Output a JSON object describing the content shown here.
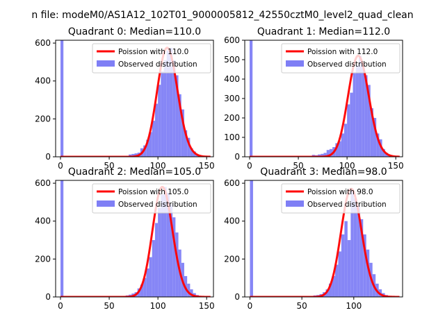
{
  "figure": {
    "suptitle": "n file: modeM0/AS1A12_102T01_9000005812_42550cztM0_level2_quad_clean"
  },
  "chart_data": [
    {
      "type": "bar",
      "title": "Quadrant 0: Median=110.0",
      "xlim": [
        -5,
        157
      ],
      "ylim": [
        0,
        615
      ],
      "xticks": [
        0,
        50,
        100,
        150
      ],
      "yticks": [
        0,
        200,
        400,
        600
      ],
      "median": 110.0,
      "legend": {
        "placement": "top-right",
        "line_label": "Poission with 110.0",
        "bar_label": "Observed distribution"
      },
      "bar_width": 3.0,
      "bars": [
        [
          0,
          1000
        ],
        [
          67,
          5
        ],
        [
          70,
          12
        ],
        [
          73,
          15
        ],
        [
          76,
          18
        ],
        [
          79,
          22
        ],
        [
          82,
          45
        ],
        [
          85,
          60
        ],
        [
          88,
          90
        ],
        [
          91,
          130
        ],
        [
          94,
          190
        ],
        [
          97,
          280
        ],
        [
          100,
          380
        ],
        [
          103,
          450
        ],
        [
          106,
          510
        ],
        [
          109,
          560
        ],
        [
          112,
          575
        ],
        [
          115,
          510
        ],
        [
          118,
          430
        ],
        [
          121,
          330
        ],
        [
          124,
          250
        ],
        [
          127,
          140
        ],
        [
          130,
          100
        ],
        [
          133,
          45
        ],
        [
          136,
          28
        ],
        [
          139,
          12
        ],
        [
          142,
          5
        ]
      ]
    },
    {
      "type": "bar",
      "title": "Quadrant 1: Median=112.0",
      "xlim": [
        -5,
        157
      ],
      "ylim": [
        0,
        600
      ],
      "xticks": [
        0,
        50,
        100,
        150
      ],
      "yticks": [
        0,
        100,
        200,
        300,
        400,
        500,
        600
      ],
      "median": 112.0,
      "legend": {
        "placement": "top-right",
        "line_label": "Poission with 112.0",
        "bar_label": "Observed distribution"
      },
      "bar_width": 3.0,
      "bars": [
        [
          0,
          1000
        ],
        [
          64,
          10
        ],
        [
          67,
          8
        ],
        [
          70,
          12
        ],
        [
          73,
          15
        ],
        [
          76,
          20
        ],
        [
          79,
          35
        ],
        [
          82,
          40
        ],
        [
          85,
          50
        ],
        [
          88,
          70
        ],
        [
          91,
          80
        ],
        [
          94,
          120
        ],
        [
          97,
          170
        ],
        [
          100,
          270
        ],
        [
          103,
          330
        ],
        [
          106,
          430
        ],
        [
          109,
          470
        ],
        [
          112,
          520
        ],
        [
          115,
          470
        ],
        [
          118,
          420
        ],
        [
          121,
          370
        ],
        [
          124,
          250
        ],
        [
          127,
          200
        ],
        [
          130,
          120
        ],
        [
          133,
          90
        ],
        [
          136,
          40
        ],
        [
          139,
          20
        ],
        [
          142,
          10
        ]
      ]
    },
    {
      "type": "bar",
      "title": "Quadrant 2: Median=105.0",
      "xlim": [
        -5,
        157
      ],
      "ylim": [
        0,
        615
      ],
      "xticks": [
        0,
        50,
        100,
        150
      ],
      "yticks": [
        0,
        200,
        400,
        600
      ],
      "median": 105.0,
      "legend": {
        "placement": "top-right",
        "line_label": "Poission with 105.0",
        "bar_label": "Observed distribution"
      },
      "bar_width": 3.0,
      "bars": [
        [
          0,
          1000
        ],
        [
          64,
          5
        ],
        [
          67,
          8
        ],
        [
          70,
          12
        ],
        [
          73,
          18
        ],
        [
          76,
          25
        ],
        [
          79,
          45
        ],
        [
          82,
          65
        ],
        [
          85,
          100
        ],
        [
          88,
          150
        ],
        [
          91,
          210
        ],
        [
          94,
          300
        ],
        [
          97,
          390
        ],
        [
          100,
          470
        ],
        [
          103,
          540
        ],
        [
          106,
          580
        ],
        [
          109,
          550
        ],
        [
          112,
          490
        ],
        [
          115,
          420
        ],
        [
          118,
          340
        ],
        [
          121,
          250
        ],
        [
          124,
          180
        ],
        [
          127,
          110
        ],
        [
          130,
          70
        ],
        [
          133,
          40
        ],
        [
          136,
          20
        ],
        [
          139,
          10
        ],
        [
          142,
          5
        ]
      ]
    },
    {
      "type": "bar",
      "title": "Quadrant 3: Median=98.0",
      "xlim": [
        -5,
        147
      ],
      "ylim": [
        0,
        615
      ],
      "xticks": [
        0,
        50,
        100
      ],
      "yticks": [
        0,
        200,
        400,
        600
      ],
      "median": 98.0,
      "legend": {
        "placement": "top-right",
        "line_label": "Poission with 98.0",
        "bar_label": "Observed distribution"
      },
      "bar_width": 3.0,
      "bars": [
        [
          0,
          1000
        ],
        [
          58,
          5
        ],
        [
          61,
          8
        ],
        [
          64,
          10
        ],
        [
          67,
          15
        ],
        [
          70,
          25
        ],
        [
          73,
          40
        ],
        [
          76,
          70
        ],
        [
          79,
          110
        ],
        [
          82,
          170
        ],
        [
          85,
          240
        ],
        [
          88,
          330
        ],
        [
          91,
          400
        ],
        [
          94,
          300
        ],
        [
          97,
          570
        ],
        [
          100,
          520
        ],
        [
          103,
          480
        ],
        [
          106,
          410
        ],
        [
          109,
          330
        ],
        [
          112,
          250
        ],
        [
          115,
          180
        ],
        [
          118,
          120
        ],
        [
          121,
          70
        ],
        [
          124,
          40
        ],
        [
          127,
          20
        ],
        [
          130,
          10
        ]
      ]
    }
  ]
}
